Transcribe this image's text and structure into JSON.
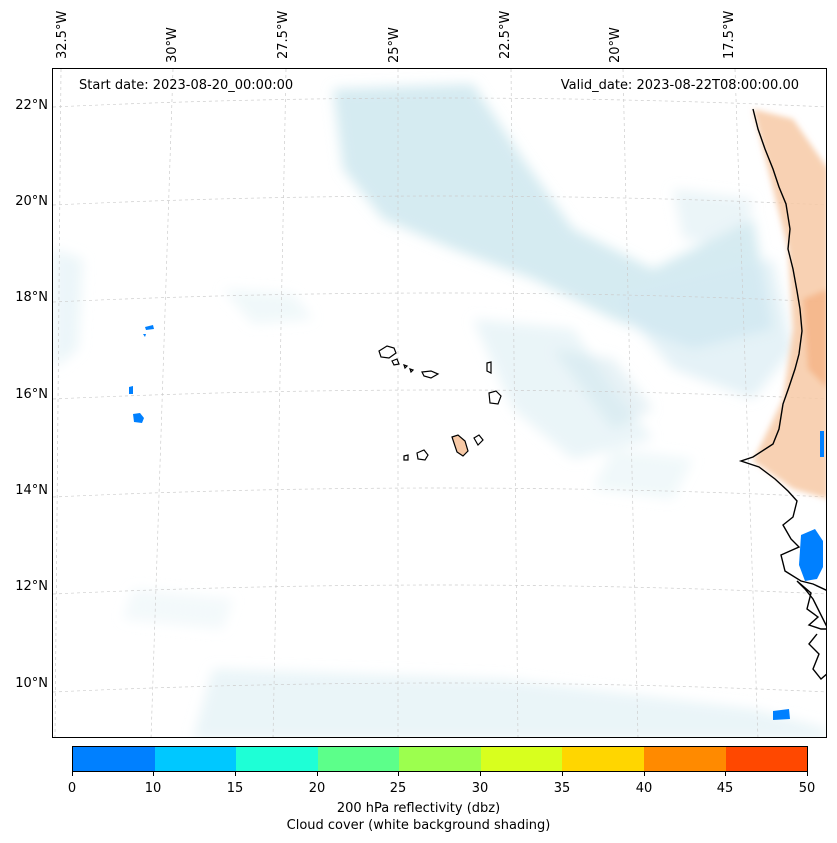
{
  "map": {
    "start_date": "Start date: 2023-08-20_00:00:00",
    "valid_date": "Valid_date: 2023-08-22T08:00:00.00",
    "lon_labels": [
      "32.5°W",
      "30°W",
      "27.5°W",
      "25°W",
      "22.5°W",
      "20°W",
      "17.5°W"
    ],
    "lat_labels": [
      "22°N",
      "20°N",
      "18°N",
      "16°N",
      "14°N",
      "12°N",
      "10°N"
    ],
    "colors": {
      "ocean": "#ffffff",
      "coastline": "#000000",
      "cloud": "#cfe6ee",
      "gridline": "#cccccc"
    }
  },
  "colorbar": {
    "ticks": [
      "0",
      "10",
      "15",
      "20",
      "25",
      "30",
      "35",
      "40",
      "45",
      "50"
    ],
    "colors": [
      "#0080ff",
      "#00c8ff",
      "#1effd6",
      "#5cff8a",
      "#9cff4e",
      "#d8ff1e",
      "#ffd600",
      "#ff8a00",
      "#ff4800"
    ],
    "label_line1": "200 hPa reflectivity (dbz)",
    "label_line2": "Cloud cover (white background shading)"
  }
}
